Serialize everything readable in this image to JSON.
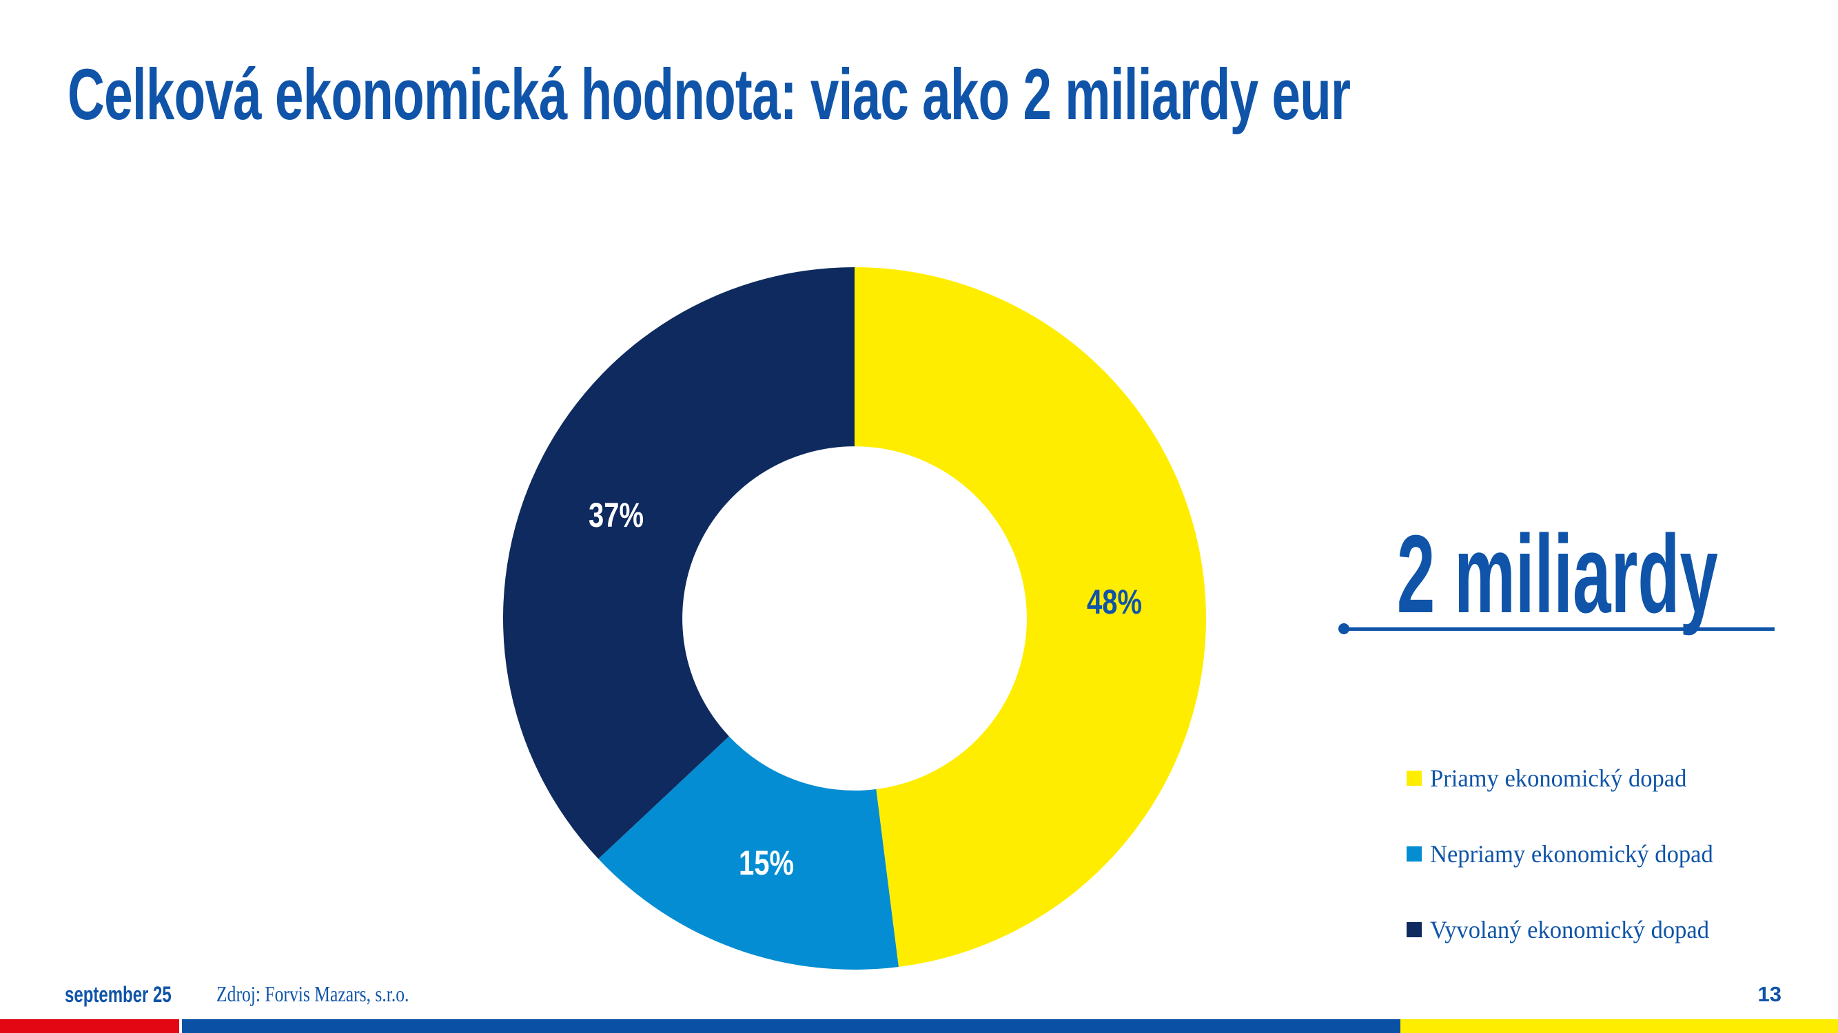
{
  "slide": {
    "title": "Celková ekonomická hodnota: viac ako 2 miliardy eur",
    "highlight": {
      "value": "2 miliardy"
    },
    "footer": {
      "date": "september 25",
      "source": "Zdroj: Forvis Mazars, s.r.o.",
      "page": "13"
    }
  },
  "chart_data": {
    "type": "pie",
    "subtype": "donut",
    "title": "Celková ekonomická hodnota: viac ako 2 miliardy eur",
    "total_label": "2 miliardy",
    "categories": [
      "Priamy ekonomický dopad",
      "Nepriamy ekonomický dopad",
      "Vyvolaný ekonomický dopad"
    ],
    "values": [
      48,
      15,
      37
    ],
    "unit": "%",
    "colors": [
      "#FFED00",
      "#048DD3",
      "#0E2A5E"
    ],
    "data_label_colors": [
      "#0F54A8",
      "#FFFFFF",
      "#FFFFFF"
    ],
    "start_angle_deg": 0,
    "direction": "clockwise",
    "inner_radius_ratio": 0.49,
    "label_radius_ratio": 0.74,
    "legend_position": "right",
    "legend": [
      "Priamy ekonomický dopad",
      "Nepriamy ekonomický dopad",
      "Vyvolaný ekonomický dopad"
    ]
  },
  "theme": {
    "background": "#FFFFFF",
    "brand_blue": "#0F54A8",
    "navy": "#0E2A5E",
    "light_blue": "#048DD3",
    "yellow": "#FFED00",
    "red": "#E30613",
    "bar_blue": "#0A51A6"
  }
}
